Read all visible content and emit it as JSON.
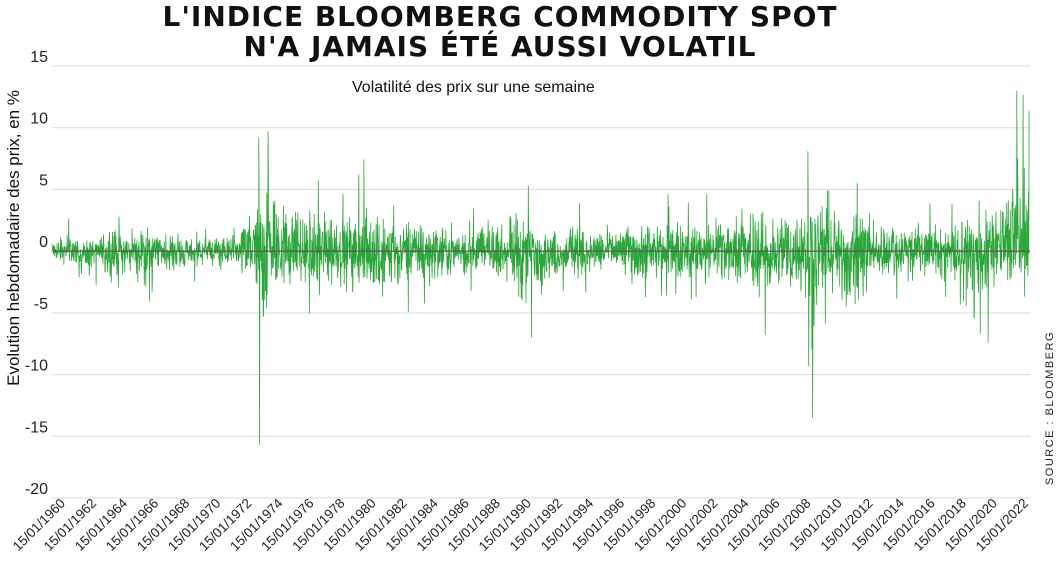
{
  "title_line1": "L'INDICE BLOOMBERG COMMODITY SPOT",
  "title_line2": "N'A JAMAIS ÉTÉ AUSSI VOLATIL",
  "source": "SOURCE : BLOOMBERG",
  "colors": {
    "series": "#2ca63a",
    "grid": "#d9d9d9",
    "zero": "#555555"
  },
  "chart_data": {
    "type": "line",
    "subtitle": "Volatilité des prix sur une semaine",
    "ylabel": "Evolution hebdomadaire des prix, en %",
    "xlabel": "",
    "ylim": [
      -20,
      15
    ],
    "yticks": [
      15,
      10,
      5,
      0,
      -5,
      -10,
      -15,
      -20
    ],
    "xlim": [
      "1960-01-15",
      "2022-12-31"
    ],
    "xtick_labels": [
      "15/01/1960",
      "15/01/1962",
      "15/01/1964",
      "15/01/1966",
      "15/01/1968",
      "15/01/1970",
      "15/01/1972",
      "15/01/1974",
      "15/01/1976",
      "15/01/1978",
      "15/01/1980",
      "15/01/1982",
      "15/01/1984",
      "15/01/1986",
      "15/01/1988",
      "15/01/1990",
      "15/01/1992",
      "15/01/1994",
      "15/01/1996",
      "15/01/1998",
      "15/01/2000",
      "15/01/2002",
      "15/01/2004",
      "15/01/2006",
      "15/01/2008",
      "15/01/2010",
      "15/01/2012",
      "15/01/2014",
      "15/01/2016",
      "15/01/2018",
      "15/01/2020",
      "15/01/2022"
    ],
    "grid": true,
    "legend": "none",
    "series": [
      {
        "values_note_free": true,
        "x": [
          "1960",
          "1961",
          "1962",
          "1963",
          "1964",
          "1965",
          "1966",
          "1967",
          "1968",
          "1969",
          "1970",
          "1971",
          "1972",
          "1973",
          "1973.5",
          "1974",
          "1975",
          "1976",
          "1977",
          "1978",
          "1979",
          "1980",
          "1981",
          "1982",
          "1983",
          "1984",
          "1985",
          "1986",
          "1987",
          "1988",
          "1989",
          "1990",
          "1991",
          "1992",
          "1993",
          "1994",
          "1995",
          "1996",
          "1997",
          "1998",
          "1999",
          "2000",
          "2001",
          "2002",
          "2003",
          "2004",
          "2005",
          "2006",
          "2007",
          "2008",
          "2008.8",
          "2009",
          "2010",
          "2011",
          "2012",
          "2013",
          "2014",
          "2015",
          "2016",
          "2017",
          "2018",
          "2019",
          "2020",
          "2021",
          "2022"
        ],
        "high": [
          1.5,
          2.8,
          2.2,
          1.5,
          4.7,
          2.5,
          3.6,
          2.0,
          2.4,
          1.8,
          1.9,
          2.3,
          2.0,
          9.2,
          8.0,
          9.7,
          7.0,
          5.5,
          5.8,
          6.2,
          5.0,
          7.8,
          5.2,
          4.0,
          4.1,
          5.3,
          3.5,
          3.8,
          4.0,
          4.0,
          3.8,
          5.3,
          3.5,
          3.0,
          3.0,
          4.0,
          3.0,
          3.6,
          3.4,
          3.8,
          4.0,
          5.2,
          4.5,
          4.6,
          5.0,
          5.3,
          5.3,
          5.8,
          5.6,
          6.0,
          8.1,
          6.4,
          5.2,
          6.0,
          5.6,
          4.5,
          4.5,
          4.5,
          4.5,
          4.0,
          4.5,
          4.0,
          5.0,
          6.1,
          13.0
        ],
        "low": [
          -1.5,
          -2.0,
          -4.5,
          -2.5,
          -5.8,
          -3.0,
          -4.8,
          -2.5,
          -3.2,
          -2.5,
          -2.5,
          -2.8,
          -2.8,
          -7.0,
          -15.7,
          -6.5,
          -5.5,
          -5.0,
          -6.5,
          -5.0,
          -5.5,
          -6.5,
          -7.0,
          -5.5,
          -5.0,
          -4.5,
          -4.5,
          -4.0,
          -3.5,
          -4.0,
          -3.5,
          -7.0,
          -6.8,
          -4.0,
          -3.5,
          -3.8,
          -3.5,
          -3.0,
          -4.0,
          -4.5,
          -4.0,
          -3.5,
          -4.0,
          -4.5,
          -5.0,
          -5.0,
          -5.5,
          -7.0,
          -5.0,
          -6.5,
          -10.0,
          -13.5,
          -5.5,
          -9.0,
          -9.2,
          -4.5,
          -4.0,
          -5.0,
          -4.5,
          -4.0,
          -4.5,
          -4.5,
          -7.4,
          -4.5,
          -4.0
        ]
      }
    ]
  }
}
